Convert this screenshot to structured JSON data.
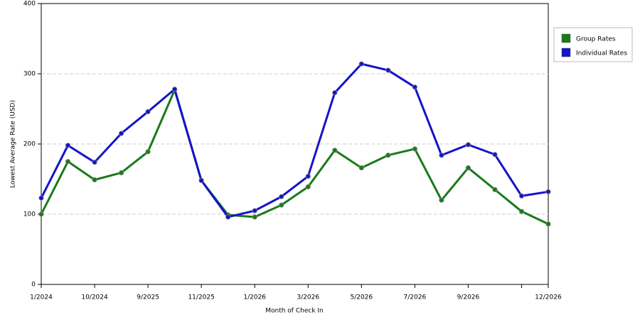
{
  "chart_data": {
    "type": "line",
    "x_label": "Month of Check In",
    "y_label": "Lowest Average Rate (USD)",
    "categories": [
      "1/2024",
      null,
      "10/2024",
      null,
      "9/2025",
      null,
      "11/2025",
      null,
      "1/2026",
      null,
      "3/2026",
      null,
      "5/2026",
      null,
      "7/2026",
      null,
      "9/2026",
      null,
      null,
      "12/2026"
    ],
    "series": [
      {
        "name": "Group Rates",
        "color": "#1a7a1a",
        "values": [
          100,
          175,
          149,
          159,
          189,
          277,
          148,
          99,
          96,
          113,
          139,
          191,
          166,
          184,
          193,
          120,
          166,
          135,
          104,
          86
        ]
      },
      {
        "name": "Individual Rates",
        "color": "#1414c8",
        "values": [
          123,
          198,
          174,
          215,
          246,
          278,
          148,
          96,
          105,
          125,
          154,
          273,
          314,
          305,
          281,
          184,
          199,
          185,
          126,
          132
        ]
      }
    ],
    "ylim": [
      0,
      400
    ],
    "yticks": [
      0,
      100,
      200,
      300,
      400
    ],
    "grid": true,
    "legend": "right"
  }
}
